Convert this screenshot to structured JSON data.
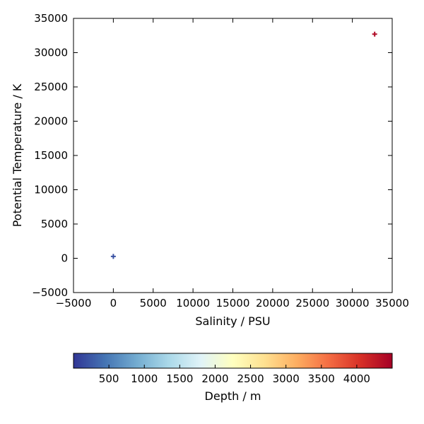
{
  "chart_data": {
    "type": "scatter",
    "title": "",
    "xlabel": "Salinity / PSU",
    "ylabel": "Potential Temperature / K",
    "xlim": [
      -5000,
      35000
    ],
    "ylim": [
      -5000,
      35000
    ],
    "xticks": [
      -5000,
      0,
      5000,
      10000,
      15000,
      20000,
      25000,
      30000,
      35000
    ],
    "yticks": [
      -5000,
      0,
      5000,
      10000,
      15000,
      20000,
      25000,
      30000,
      35000
    ],
    "xtick_labels": [
      "−5000",
      "0",
      "5000",
      "10000",
      "15000",
      "20000",
      "25000",
      "30000",
      "35000"
    ],
    "ytick_labels": [
      "−5000",
      "0",
      "5000",
      "10000",
      "15000",
      "20000",
      "25000",
      "30000",
      "35000"
    ],
    "grid": false,
    "marker": "plus",
    "points": [
      {
        "x": 0,
        "y": 273,
        "depth": 200
      },
      {
        "x": 32800,
        "y": 32700,
        "depth": 4400
      }
    ],
    "colorbar": {
      "label": "Depth / m",
      "range": [
        0,
        4500
      ],
      "ticks": [
        500,
        1000,
        1500,
        2000,
        2500,
        3000,
        3500,
        4000
      ],
      "tick_labels": [
        "500",
        "1000",
        "1500",
        "2000",
        "2500",
        "3000",
        "3500",
        "4000"
      ],
      "colormap": "RdYlBu_r",
      "colors": [
        "#313695",
        "#4575b4",
        "#74add1",
        "#abd9e9",
        "#e0f3f8",
        "#ffffbf",
        "#fee090",
        "#fdae61",
        "#f46d43",
        "#d73027",
        "#a50026"
      ]
    }
  }
}
